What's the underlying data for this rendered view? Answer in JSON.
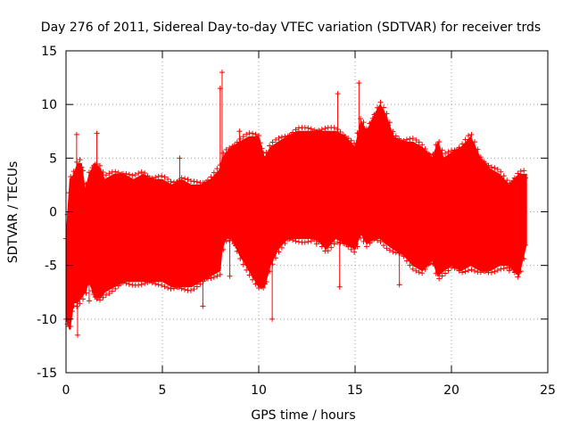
{
  "chart_data": {
    "type": "scatter",
    "title": "Day 276 of 2011, Sidereal Day-to-day VTEC variation (SDTVAR) for receiver trds",
    "xlabel": "GPS time / hours",
    "ylabel": "SDTVAR / TECUs",
    "xlim": [
      0,
      25
    ],
    "ylim": [
      -15,
      15
    ],
    "xticks": [
      "0",
      "5",
      "10",
      "15",
      "20",
      "25"
    ],
    "yticks": [
      "-15",
      "-10",
      "-5",
      "0",
      "5",
      "10",
      "15"
    ],
    "grid": true,
    "series": [
      {
        "name": "SDTVAR",
        "color": "#ff0000",
        "marker": "plus-with-errorbars",
        "envelope": {
          "x": [
            0.0,
            0.2,
            0.4,
            0.6,
            0.8,
            1.0,
            1.2,
            1.5,
            1.8,
            2.0,
            2.5,
            3.0,
            3.5,
            4.0,
            4.5,
            5.0,
            5.5,
            6.0,
            6.5,
            7.0,
            7.5,
            8.0,
            8.1,
            8.3,
            8.6,
            9.0,
            9.5,
            10.0,
            10.3,
            10.6,
            11.0,
            11.5,
            12.0,
            12.5,
            13.0,
            13.5,
            14.0,
            14.5,
            15.0,
            15.3,
            15.6,
            16.0,
            16.3,
            16.6,
            17.0,
            17.5,
            18.0,
            18.5,
            19.0,
            19.3,
            19.6,
            20.0,
            20.5,
            21.0,
            21.5,
            22.0,
            22.5,
            23.0,
            23.5,
            23.9
          ],
          "upper": [
            -2.5,
            3.0,
            3.5,
            4.5,
            4.5,
            2.0,
            3.5,
            4.5,
            4.0,
            3.0,
            3.5,
            3.5,
            3.0,
            3.5,
            3.0,
            3.0,
            2.5,
            3.0,
            2.5,
            2.5,
            3.0,
            4.0,
            5.0,
            5.5,
            6.0,
            6.5,
            7.0,
            7.0,
            5.0,
            6.0,
            6.5,
            7.0,
            7.5,
            7.5,
            7.5,
            7.5,
            7.5,
            7.0,
            6.0,
            8.5,
            7.5,
            9.0,
            10.0,
            9.0,
            7.0,
            6.5,
            6.5,
            6.0,
            5.0,
            6.5,
            5.0,
            5.5,
            6.0,
            7.0,
            5.0,
            4.0,
            3.5,
            2.5,
            3.5,
            3.5
          ],
          "lower": [
            -10.0,
            -11.0,
            -8.5,
            -8.5,
            -8.0,
            -7.5,
            -6.5,
            -8.0,
            -8.0,
            -7.5,
            -7.0,
            -6.5,
            -6.5,
            -6.5,
            -6.5,
            -6.5,
            -7.0,
            -7.0,
            -7.0,
            -6.5,
            -6.0,
            -5.5,
            -3.5,
            -2.5,
            -2.5,
            -4.0,
            -5.5,
            -7.0,
            -7.0,
            -5.0,
            -3.5,
            -2.5,
            -2.5,
            -2.5,
            -2.5,
            -3.5,
            -2.5,
            -3.0,
            -3.5,
            -2.0,
            -3.0,
            -2.5,
            -2.5,
            -3.0,
            -3.5,
            -4.0,
            -5.0,
            -5.5,
            -4.5,
            -6.0,
            -5.5,
            -5.0,
            -5.5,
            -5.0,
            -5.5,
            -5.5,
            -5.0,
            -5.0,
            -6.0,
            -3.0
          ]
        },
        "outliers": [
          {
            "x": 0.55,
            "y": 7.2
          },
          {
            "x": 0.6,
            "y": -11.5
          },
          {
            "x": 1.2,
            "y": -8.3
          },
          {
            "x": 1.6,
            "y": 7.3
          },
          {
            "x": 5.9,
            "y": 5.0
          },
          {
            "x": 7.1,
            "y": -8.8
          },
          {
            "x": 8.1,
            "y": 13.0
          },
          {
            "x": 8.0,
            "y": 11.5
          },
          {
            "x": 8.5,
            "y": -6.0
          },
          {
            "x": 9.0,
            "y": 7.5
          },
          {
            "x": 10.7,
            "y": -10.0
          },
          {
            "x": 14.1,
            "y": 11.0
          },
          {
            "x": 14.2,
            "y": -7.0
          },
          {
            "x": 15.2,
            "y": 12.0
          },
          {
            "x": 17.3,
            "y": -6.8
          },
          {
            "x": 13.0,
            "y": -3.0
          },
          {
            "x": 23.0,
            "y": -5.5
          }
        ]
      }
    ]
  }
}
